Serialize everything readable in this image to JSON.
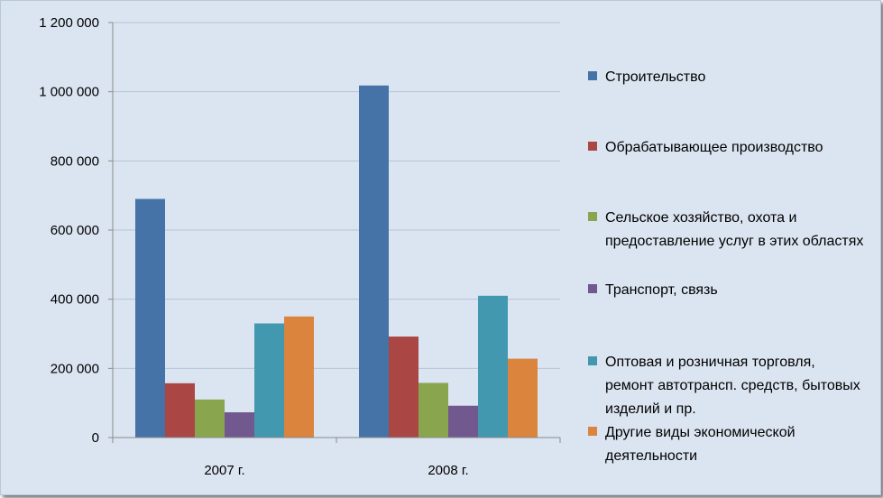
{
  "chart_data": {
    "type": "bar",
    "categories": [
      "2007 г.",
      "2008 г."
    ],
    "ylim": [
      0,
      1200000
    ],
    "yticks": [
      "0",
      "200 000",
      "400 000",
      "600 000",
      "800 000",
      "1 000 000",
      "1 200 000"
    ],
    "ytick_values": [
      0,
      200000,
      400000,
      600000,
      800000,
      1000000,
      1200000
    ],
    "grid": true,
    "legend_position": "right",
    "series": [
      {
        "name": "Строительство",
        "color": "#4572a7",
        "values": [
          690000,
          1018000
        ]
      },
      {
        "name": "Обрабатывающее производство",
        "color": "#aa4643",
        "values": [
          157000,
          292000
        ]
      },
      {
        "name": "Сельское хозяйство, охота и предоставление услуг в этих областях",
        "color": "#89a54e",
        "values": [
          110000,
          158000
        ]
      },
      {
        "name": "Транспорт, связь",
        "color": "#71588f",
        "values": [
          73000,
          92000
        ]
      },
      {
        "name": "Оптовая и розничная торговля, ремонт автотрансп. средств, бытовых изделий и пр.",
        "color": "#4198af",
        "values": [
          330000,
          410000
        ]
      },
      {
        "name": "Другие виды экономической деятельности",
        "color": "#db843d",
        "values": [
          350000,
          228000
        ]
      }
    ]
  }
}
